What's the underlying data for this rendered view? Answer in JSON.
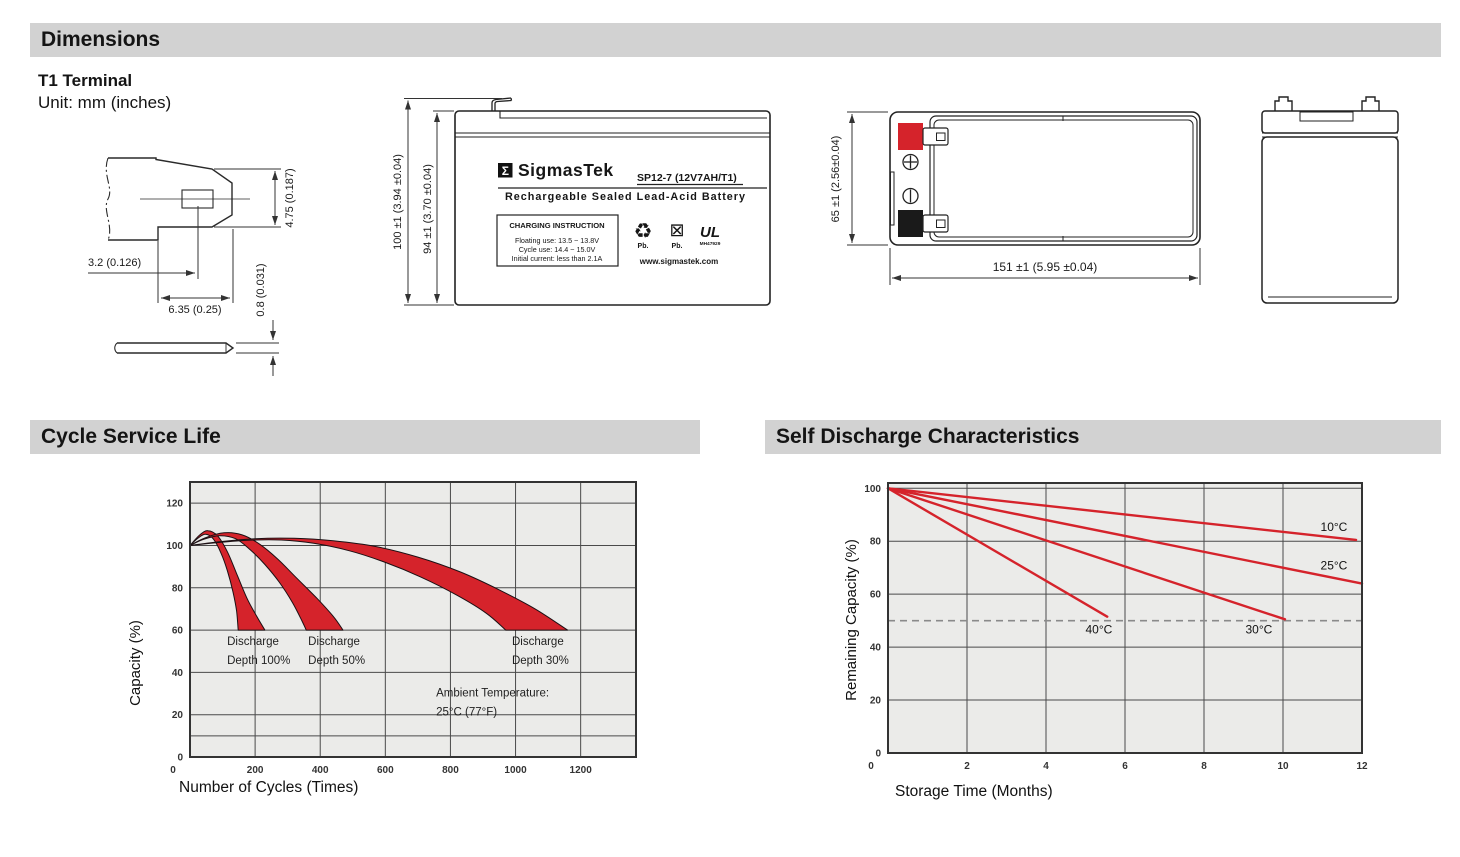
{
  "sections": {
    "dimensions": {
      "title": "Dimensions",
      "subtitle": "T1 Terminal",
      "unit": "Unit: mm (inches)"
    },
    "cycle": {
      "title": "Cycle Service Life"
    },
    "self_discharge": {
      "title": "Self Discharge Characteristics"
    }
  },
  "terminal_drawing": {
    "dim_height": "4.75 (0.187)",
    "dim_offset": "3.2 (0.126)",
    "dim_width": "6.35 (0.25)",
    "dim_thickness": "0.8 (0.031)"
  },
  "front_view": {
    "dim_total_height": "100 ±1 (3.94 ±0.04)",
    "dim_case_height": "94 ±1 (3.70 ±0.04)",
    "label": {
      "logo_glyph": "Σ",
      "brand": "SigmasTek",
      "model": "SP12-7 (12V7AH/T1)",
      "subtitle": "Rechargeable Sealed Lead-Acid Battery",
      "charging_title": "CHARGING INSTRUCTION",
      "charging_lines": [
        "Floating use: 13.5 ~ 13.8V",
        "Cycle use: 14.4 ~ 15.0V",
        "Initial current: less than 2.1A"
      ],
      "pb_recycle": "Pb.",
      "pb_trash": "Pb.",
      "recycle_glyph": "♻",
      "trash_glyph": "⊠",
      "ul_text": "UL",
      "ul_code": "MH47929",
      "website": "www.sigmastek.com"
    }
  },
  "top_view": {
    "dim_height": "65 ±1 (2.56±0.04)",
    "dim_width": "151 ±1 (5.95 ±0.04)",
    "polarity_plus": "+",
    "polarity_minus": "−"
  },
  "chart_data": [
    {
      "id": "cycle_service_life",
      "type": "area",
      "title": "Cycle Service Life",
      "xlabel": "Number of Cycles (Times)",
      "ylabel": "Capacity (%)",
      "xlim": [
        0,
        1370
      ],
      "ylim": [
        0,
        130
      ],
      "xticks": [
        0,
        200,
        400,
        600,
        800,
        1000,
        1200
      ],
      "yticks": [
        0,
        20,
        40,
        60,
        80,
        100,
        120
      ],
      "minor_gridlines_y": [
        10
      ],
      "grid": true,
      "legend_position": "none",
      "plot_bg": "#ebebe9",
      "grid_color": "#4a4a4a",
      "frame_color": "#333333",
      "band_fill": "#d5232b",
      "band_stroke": "#1c1014",
      "series": [
        {
          "name": "Discharge Depth 100%",
          "upper": [
            [
              0,
              100
            ],
            [
              30,
              105
            ],
            [
              55,
              107
            ],
            [
              85,
              104.5
            ],
            [
              115,
              97
            ],
            [
              145,
              86
            ],
            [
              175,
              75
            ],
            [
              205,
              66.5
            ],
            [
              230,
              60
            ]
          ],
          "lower": [
            [
              0,
              100
            ],
            [
              25,
              103.5
            ],
            [
              48,
              105.3
            ],
            [
              72,
              103
            ],
            [
              95,
              96.5
            ],
            [
              115,
              88
            ],
            [
              132,
              78
            ],
            [
              143,
              69
            ],
            [
              148,
              60
            ]
          ]
        },
        {
          "name": "Discharge Depth 50%",
          "upper": [
            [
              0,
              100
            ],
            [
              45,
              103.5
            ],
            [
              105,
              106
            ],
            [
              160,
              105
            ],
            [
              215,
              100.5
            ],
            [
              270,
              93.5
            ],
            [
              325,
              85
            ],
            [
              390,
              75
            ],
            [
              440,
              66.5
            ],
            [
              470,
              60
            ]
          ],
          "lower": [
            [
              0,
              100
            ],
            [
              40,
              102.8
            ],
            [
              90,
              104.6
            ],
            [
              140,
              103.2
            ],
            [
              185,
              98
            ],
            [
              230,
              91
            ],
            [
              275,
              82.5
            ],
            [
              315,
              73
            ],
            [
              345,
              64
            ],
            [
              357,
              60
            ]
          ]
        },
        {
          "name": "Discharge Depth 30%",
          "upper": [
            [
              0,
              100
            ],
            [
              90,
              101.8
            ],
            [
              200,
              103.2
            ],
            [
              320,
              103.4
            ],
            [
              440,
              102.2
            ],
            [
              570,
              99.5
            ],
            [
              700,
              94.5
            ],
            [
              830,
              87.5
            ],
            [
              950,
              79
            ],
            [
              1060,
              70
            ],
            [
              1160,
              60
            ]
          ],
          "lower": [
            [
              0,
              100
            ],
            [
              80,
              101.3
            ],
            [
              180,
              102.5
            ],
            [
              280,
              102.6
            ],
            [
              380,
              101
            ],
            [
              490,
              97.5
            ],
            [
              600,
              92
            ],
            [
              710,
              85
            ],
            [
              820,
              76.5
            ],
            [
              910,
              68
            ],
            [
              970,
              60
            ]
          ]
        }
      ],
      "annotations": [
        {
          "lines": [
            "Discharge",
            "Depth 100%"
          ],
          "x": 114,
          "y": 53
        },
        {
          "lines": [
            "Discharge",
            "Depth 50%"
          ],
          "x": 363,
          "y": 53
        },
        {
          "lines": [
            "Discharge",
            "Depth 30%"
          ],
          "x": 989,
          "y": 53
        },
        {
          "lines": [
            "Ambient Temperature:",
            "25°C (77°F)"
          ],
          "x": 756,
          "y": 28.5
        }
      ]
    },
    {
      "id": "self_discharge",
      "type": "line",
      "title": "Self Discharge Characteristics",
      "xlabel": "Storage Time (Months)",
      "ylabel": "Remaining Capacity (%)",
      "xlim": [
        0,
        12
      ],
      "ylim": [
        0,
        102
      ],
      "xticks": [
        0,
        2,
        4,
        6,
        8,
        10,
        12
      ],
      "yticks": [
        0,
        20,
        40,
        60,
        80,
        100
      ],
      "grid": true,
      "legend_position": "inline-labels",
      "plot_bg": "#ebebe9",
      "grid_color": "#4a4a4a",
      "frame_color": "#333333",
      "line_color": "#d5232b",
      "dashed_line_y": 50,
      "dashed_color": "#8a8a8a",
      "series": [
        {
          "name": "10°C",
          "points": [
            [
              0,
              100
            ],
            [
              11.85,
              80.5
            ]
          ],
          "label_pos": [
            10.95,
            83.8
          ]
        },
        {
          "name": "25°C",
          "points": [
            [
              0,
              100
            ],
            [
              12,
              64
            ]
          ],
          "label_pos": [
            10.95,
            69.3
          ]
        },
        {
          "name": "30°C",
          "points": [
            [
              0,
              100
            ],
            [
              10.05,
              50.5
            ]
          ],
          "label_pos": [
            9.05,
            45.2
          ]
        },
        {
          "name": "40°C",
          "points": [
            [
              0,
              100
            ],
            [
              5.55,
              51.5
            ]
          ],
          "label_pos": [
            5.0,
            45.2
          ]
        }
      ]
    }
  ]
}
